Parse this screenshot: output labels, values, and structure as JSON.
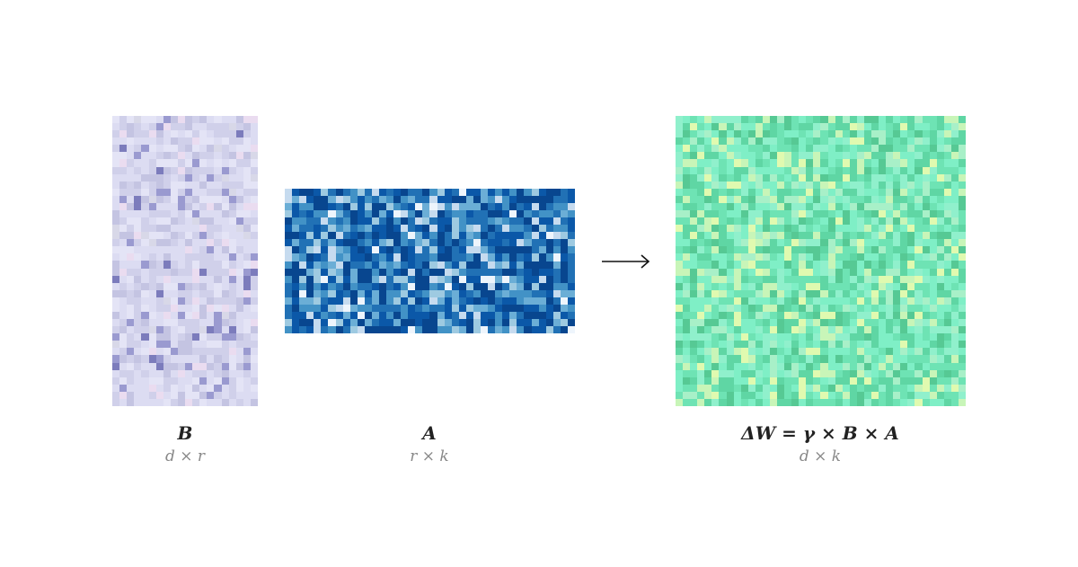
{
  "matrices": {
    "B": {
      "label": "B",
      "dims": "d × r",
      "palette": [
        "#dcdcf2",
        "#d0d0ea",
        "#e4e4f6",
        "#c4c4e2",
        "#eadcf0",
        "#9a9ad0",
        "#7c7cbc",
        "#d8d8e8"
      ]
    },
    "A": {
      "label": "A",
      "dims": "r × k",
      "palette": [
        "#08468f",
        "#0b58a8",
        "#2171b5",
        "#4292c6",
        "#6baed6",
        "#9ecae1",
        "#c6dbef",
        "#eef5fc"
      ]
    },
    "W": {
      "label": "ΔW = γ × B × A",
      "dims": "d × k",
      "palette": [
        "#5fd6a4",
        "#6ee3b4",
        "#7fefc6",
        "#90f0cc",
        "#a8f0c8",
        "#c8f5b8",
        "#e0fab0",
        "#56c994"
      ]
    }
  },
  "arrow_icon": "right-arrow"
}
